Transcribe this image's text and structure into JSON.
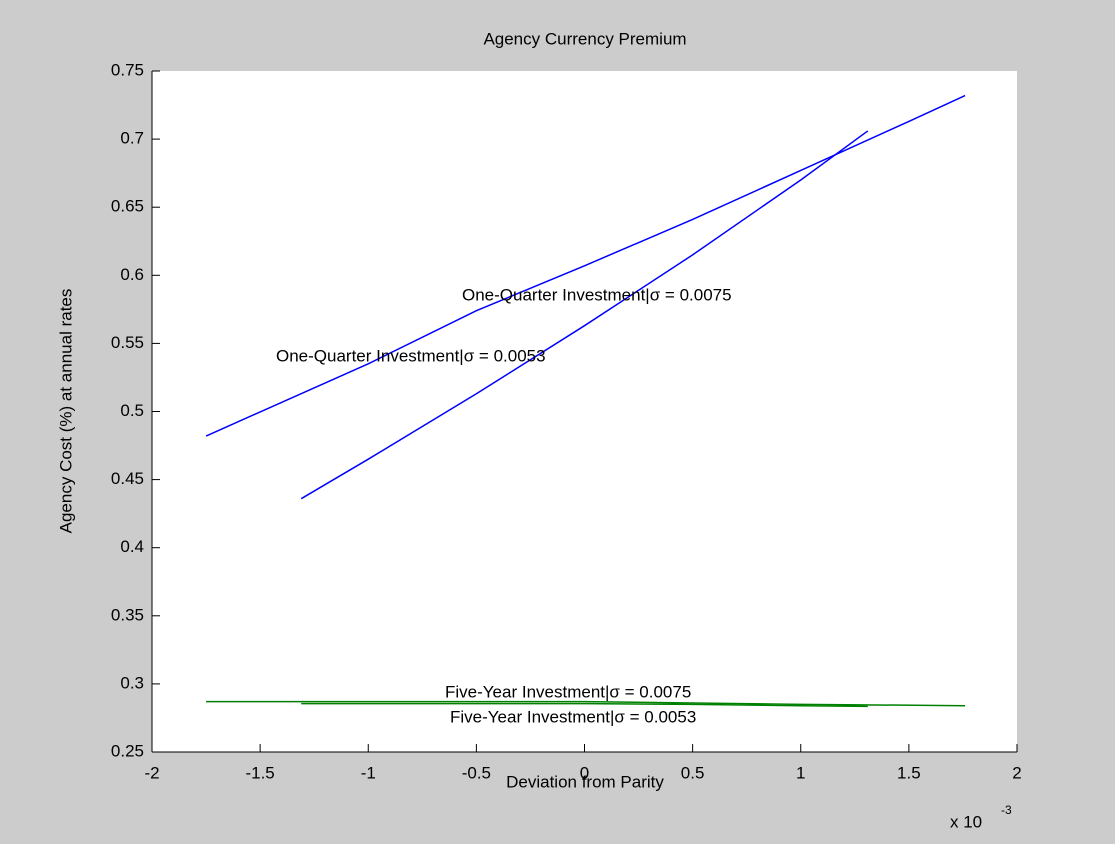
{
  "chart_data": {
    "type": "line",
    "title": "Agency Currency Premium",
    "x_label": "Deviation from Parity",
    "y_label": "Agency Cost (%) at annual rates",
    "x_multiplier": "x 10",
    "x_multiplier_exponent": "-3",
    "xlim": [
      -2,
      2
    ],
    "xticks": [
      -2,
      -1.5,
      -1,
      -0.5,
      0,
      0.5,
      1,
      1.5,
      2
    ],
    "ylim": [
      0.25,
      0.75
    ],
    "yticks": [
      0.25,
      0.3,
      0.35,
      0.4,
      0.45,
      0.5,
      0.55,
      0.6,
      0.65,
      0.7,
      0.75
    ],
    "series": [
      {
        "color": "#0000ff",
        "x": [
          -1.75,
          -1.0,
          -0.5,
          0,
          0.5,
          1.0,
          1.5,
          1.76
        ],
        "values": [
          0.482,
          0.535,
          0.574,
          0.607,
          0.641,
          0.677,
          0.713,
          0.732
        ]
      },
      {
        "color": "#0000ff",
        "x": [
          -1.31,
          -1.0,
          -0.5,
          0,
          0.5,
          1.0,
          1.31
        ],
        "values": [
          0.436,
          0.465,
          0.513,
          0.563,
          0.615,
          0.67,
          0.706
        ]
      },
      {
        "color": "#008000",
        "x": [
          -1.75,
          -1.0,
          0,
          0.5,
          1.0,
          1.76
        ],
        "values": [
          0.287,
          0.287,
          0.287,
          0.286,
          0.285,
          0.284
        ]
      },
      {
        "color": "#008000",
        "x": [
          -1.31,
          -0.5,
          0,
          0.5,
          1.0,
          1.31
        ],
        "values": [
          0.2855,
          0.2855,
          0.2855,
          0.285,
          0.284,
          0.2835
        ]
      }
    ],
    "annotations": [
      "One-Quarter Investment|σ = 0.0075",
      "One-Quarter Investment|σ = 0.0053",
      "Five-Year Investment|σ = 0.0075",
      "Five-Year Investment|σ = 0.0053"
    ]
  }
}
